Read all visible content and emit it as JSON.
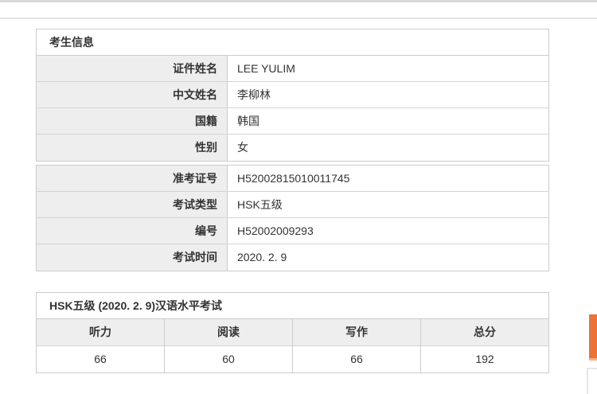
{
  "colors": {
    "accent_orange": "#ed7236",
    "label_cell_bg": "#eeeeee",
    "border": "#cccccc",
    "top_bar": "#d9d9d9"
  },
  "examinee_table": {
    "title": "考生信息",
    "rows_group1": [
      {
        "label": "证件姓名",
        "value": "LEE YULIM"
      },
      {
        "label": "中文姓名",
        "value": "李柳林"
      },
      {
        "label": "国籍",
        "value": "韩国"
      },
      {
        "label": "性别",
        "value": "女"
      }
    ],
    "rows_group2": [
      {
        "label": "准考证号",
        "value": "H52002815010011745"
      },
      {
        "label": "考试类型",
        "value": "HSK五级"
      },
      {
        "label": "编号",
        "value": "H52002009293"
      },
      {
        "label": "考试时间",
        "value": "2020. 2. 9"
      }
    ]
  },
  "score_table": {
    "title": "HSK五级 (2020. 2. 9)汉语水平考试",
    "columns": [
      "听力",
      "阅读",
      "写作",
      "总分"
    ],
    "scores": [
      "66",
      "60",
      "66",
      "192"
    ]
  }
}
